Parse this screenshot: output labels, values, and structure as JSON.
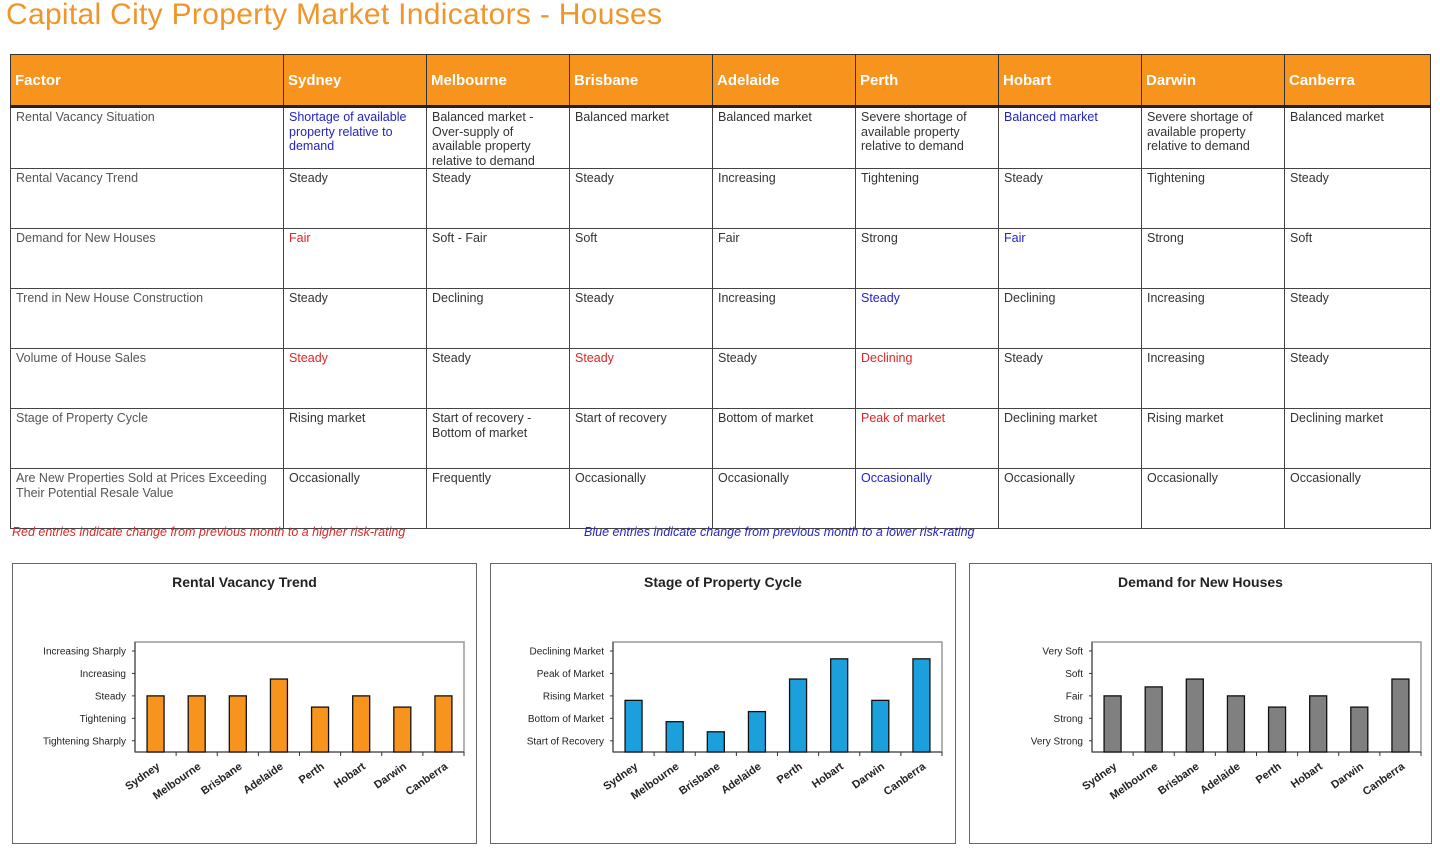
{
  "title": "Capital City Property Market Indicators - Houses",
  "table": {
    "headers": [
      "Factor",
      "Sydney",
      "Melbourne",
      "Brisbane",
      "Adelaide",
      "Perth",
      "Hobart",
      "Darwin",
      "Canberra"
    ],
    "rows": [
      {
        "factor": "Rental Vacancy Situation",
        "cells": [
          {
            "text": "Shortage of available property relative to demand",
            "color": "blue"
          },
          {
            "text": "Balanced market - Over-supply of available property relative to demand",
            "color": ""
          },
          {
            "text": "Balanced market",
            "color": ""
          },
          {
            "text": "Balanced market",
            "color": ""
          },
          {
            "text": "Severe shortage of available property relative to demand",
            "color": ""
          },
          {
            "text": "Balanced market",
            "color": "blue"
          },
          {
            "text": "Severe shortage of available property relative to demand",
            "color": ""
          },
          {
            "text": "Balanced market",
            "color": ""
          }
        ]
      },
      {
        "factor": "Rental Vacancy Trend",
        "cells": [
          {
            "text": "Steady",
            "color": ""
          },
          {
            "text": "Steady",
            "color": ""
          },
          {
            "text": "Steady",
            "color": ""
          },
          {
            "text": "Increasing",
            "color": ""
          },
          {
            "text": "Tightening",
            "color": ""
          },
          {
            "text": "Steady",
            "color": ""
          },
          {
            "text": "Tightening",
            "color": ""
          },
          {
            "text": "Steady",
            "color": ""
          }
        ]
      },
      {
        "factor": "Demand for New Houses",
        "cells": [
          {
            "text": "Fair",
            "color": "red"
          },
          {
            "text": "Soft - Fair",
            "color": ""
          },
          {
            "text": "Soft",
            "color": ""
          },
          {
            "text": "Fair",
            "color": ""
          },
          {
            "text": "Strong",
            "color": ""
          },
          {
            "text": "Fair",
            "color": "blue"
          },
          {
            "text": "Strong",
            "color": ""
          },
          {
            "text": "Soft",
            "color": ""
          }
        ]
      },
      {
        "factor": "Trend in New House Construction",
        "cells": [
          {
            "text": "Steady",
            "color": ""
          },
          {
            "text": "Declining",
            "color": ""
          },
          {
            "text": "Steady",
            "color": ""
          },
          {
            "text": "Increasing",
            "color": ""
          },
          {
            "text": "Steady",
            "color": "blue"
          },
          {
            "text": "Declining",
            "color": ""
          },
          {
            "text": "Increasing",
            "color": ""
          },
          {
            "text": "Steady",
            "color": ""
          }
        ]
      },
      {
        "factor": "Volume of House Sales",
        "cells": [
          {
            "text": "Steady",
            "color": "red"
          },
          {
            "text": "Steady",
            "color": ""
          },
          {
            "text": "Steady",
            "color": "red"
          },
          {
            "text": "Steady",
            "color": ""
          },
          {
            "text": "Declining",
            "color": "red"
          },
          {
            "text": "Steady",
            "color": ""
          },
          {
            "text": "Increasing",
            "color": ""
          },
          {
            "text": "Steady",
            "color": ""
          }
        ]
      },
      {
        "factor": "Stage of Property Cycle",
        "cells": [
          {
            "text": "Rising market",
            "color": ""
          },
          {
            "text": "Start of recovery - Bottom of market",
            "color": ""
          },
          {
            "text": "Start of recovery",
            "color": ""
          },
          {
            "text": "Bottom of market",
            "color": ""
          },
          {
            "text": "Peak of market",
            "color": "red"
          },
          {
            "text": "Declining market",
            "color": ""
          },
          {
            "text": "Rising market",
            "color": ""
          },
          {
            "text": "Declining market",
            "color": ""
          }
        ]
      },
      {
        "factor": "Are New Properties Sold at Prices Exceeding Their Potential Resale Value",
        "cells": [
          {
            "text": "Occasionally",
            "color": ""
          },
          {
            "text": "Frequently",
            "color": ""
          },
          {
            "text": "Occasionally",
            "color": ""
          },
          {
            "text": "Occasionally",
            "color": ""
          },
          {
            "text": "Occasionally",
            "color": "blue"
          },
          {
            "text": "Occasionally",
            "color": ""
          },
          {
            "text": "Occasionally",
            "color": ""
          },
          {
            "text": "Occasionally",
            "color": ""
          }
        ]
      }
    ]
  },
  "notes": {
    "red": "Red entries indicate change from previous month to a higher risk-rating",
    "blue": "Blue entries indicate change from previous month to a lower risk-rating"
  },
  "colors": {
    "header_bg": "#f7941d",
    "title": "#f0952a",
    "red": "#e02424",
    "blue": "#2323c8"
  },
  "chart_data": [
    {
      "type": "bar",
      "title": "Rental Vacancy Trend",
      "categories": [
        "Sydney",
        "Melbourne",
        "Brisbane",
        "Adelaide",
        "Perth",
        "Hobart",
        "Darwin",
        "Canberra"
      ],
      "y_categories": [
        "Tightening Sharply",
        "Tightening",
        "Steady",
        "Increasing",
        "Increasing Sharply"
      ],
      "values": [
        3,
        3,
        3,
        3.75,
        2.5,
        3,
        2.5,
        3
      ],
      "ylim": [
        0.5,
        5.4
      ],
      "xlabel": "",
      "ylabel": "",
      "bar_color": "#f7941d",
      "grid": false
    },
    {
      "type": "bar",
      "title": "Stage of Property Cycle",
      "categories": [
        "Sydney",
        "Melbourne",
        "Brisbane",
        "Adelaide",
        "Perth",
        "Hobart",
        "Darwin",
        "Canberra"
      ],
      "y_categories": [
        "Start of Recovery",
        "Bottom of Market",
        "Rising Market",
        "Peak of Market",
        "Declining Market"
      ],
      "values": [
        2.8,
        1.85,
        1.4,
        2.3,
        3.75,
        4.65,
        2.8,
        4.65
      ],
      "ylim": [
        0.5,
        5.4
      ],
      "xlabel": "",
      "ylabel": "",
      "bar_color": "#1ca0dc",
      "grid": false
    },
    {
      "type": "bar",
      "title": "Demand for New Houses",
      "categories": [
        "Sydney",
        "Melbourne",
        "Brisbane",
        "Adelaide",
        "Perth",
        "Hobart",
        "Darwin",
        "Canberra"
      ],
      "y_categories": [
        "Very Strong",
        "Strong",
        "Fair",
        "Soft",
        "Very Soft"
      ],
      "values": [
        3,
        3.4,
        3.75,
        3,
        2.5,
        3,
        2.5,
        3.75
      ],
      "ylim": [
        0.5,
        5.4
      ],
      "xlabel": "",
      "ylabel": "",
      "bar_color": "#808080",
      "grid": false
    }
  ]
}
